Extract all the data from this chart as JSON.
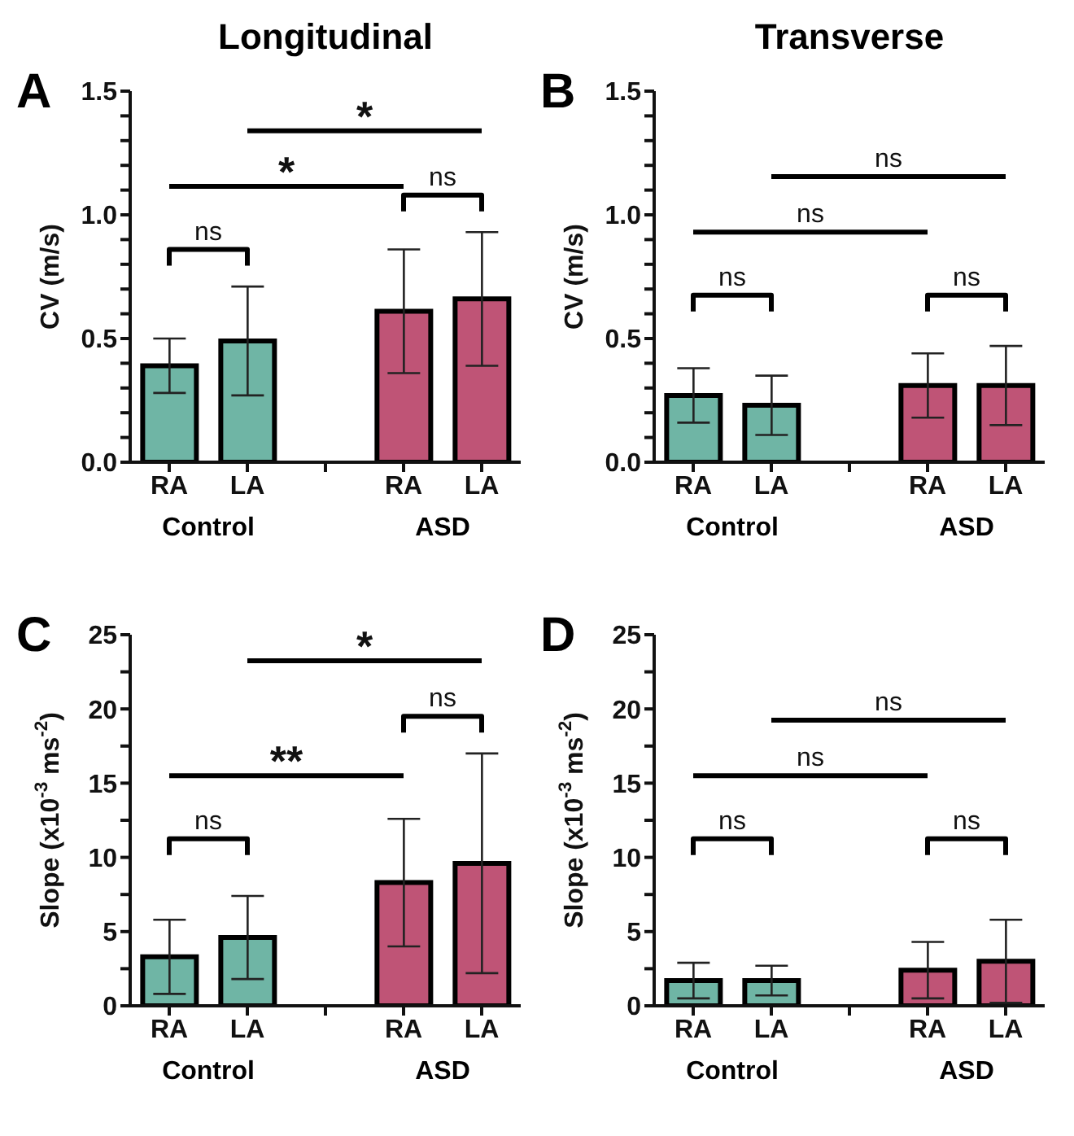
{
  "chart_data": [
    {
      "type": "bar",
      "title": "Longitudinal",
      "ylabel": "CV (m/s)",
      "categories": [
        "RA",
        "LA",
        null,
        "RA",
        "LA"
      ],
      "values": [
        0.39,
        0.49,
        null,
        0.61,
        0.66
      ],
      "errors": [
        0.11,
        0.22,
        null,
        0.25,
        0.27
      ],
      "colors": [
        "#6fb5a5",
        "#6fb5a5",
        null,
        "#bf5476",
        "#bf5476"
      ],
      "ylim": [
        0,
        1.5
      ],
      "yticks": [
        {
          "value": 0,
          "label": "0.0"
        },
        {
          "value": 0.1,
          "label": null
        },
        {
          "value": 0.2,
          "label": null
        },
        {
          "value": 0.3,
          "label": null
        },
        {
          "value": 0.4,
          "label": null
        },
        {
          "value": 0.5,
          "label": "0.5"
        },
        {
          "value": 0.6,
          "label": null
        },
        {
          "value": 0.7,
          "label": null
        },
        {
          "value": 0.8,
          "label": null
        },
        {
          "value": 0.9,
          "label": null
        },
        {
          "value": 1,
          "label": "1.0"
        },
        {
          "value": 1.1,
          "label": null
        },
        {
          "value": 1.2,
          "label": null
        },
        {
          "value": 1.3,
          "label": null
        },
        {
          "value": 1.4,
          "label": null
        },
        {
          "value": 1.5,
          "label": "1.5"
        }
      ],
      "annotations": [
        "A",
        "Control",
        "ASD",
        "ns",
        "ns",
        "*",
        "*"
      ]
    },
    {
      "type": "bar",
      "title": "Transverse",
      "ylabel": "CV (m/s)",
      "categories": [
        "RA",
        "LA",
        null,
        "RA",
        "LA"
      ],
      "values": [
        0.27,
        0.23,
        null,
        0.31,
        0.31
      ],
      "errors": [
        0.11,
        0.12,
        null,
        0.13,
        0.16
      ],
      "colors": [
        "#6fb5a5",
        "#6fb5a5",
        null,
        "#bf5476",
        "#bf5476"
      ],
      "ylim": [
        0,
        1.5
      ],
      "yticks": [
        {
          "value": 0,
          "label": "0.0"
        },
        {
          "value": 0.1,
          "label": null
        },
        {
          "value": 0.2,
          "label": null
        },
        {
          "value": 0.3,
          "label": null
        },
        {
          "value": 0.4,
          "label": null
        },
        {
          "value": 0.5,
          "label": "0.5"
        },
        {
          "value": 0.6,
          "label": null
        },
        {
          "value": 0.7,
          "label": null
        },
        {
          "value": 0.8,
          "label": null
        },
        {
          "value": 0.9,
          "label": null
        },
        {
          "value": 1,
          "label": "1.0"
        },
        {
          "value": 1.1,
          "label": null
        },
        {
          "value": 1.2,
          "label": null
        },
        {
          "value": 1.3,
          "label": null
        },
        {
          "value": 1.4,
          "label": null
        },
        {
          "value": 1.5,
          "label": "1.5"
        }
      ],
      "annotations": [
        "B",
        "Control",
        "ASD",
        "ns",
        "ns",
        "ns",
        "ns"
      ]
    },
    {
      "type": "bar",
      "ylabel": "Slope (x10$^{-3}$ ms$^{-2}$)",
      "categories": [
        "RA",
        "LA",
        null,
        "RA",
        "LA"
      ],
      "values": [
        3.3,
        4.6,
        null,
        8.3,
        9.6
      ],
      "errors": [
        2.5,
        2.8,
        null,
        4.3,
        7.4
      ],
      "colors": [
        "#6fb5a5",
        "#6fb5a5",
        null,
        "#bf5476",
        "#bf5476"
      ],
      "ylim": [
        0,
        25
      ],
      "yticks": [
        0,
        {
          "value": 2.5,
          "label": null
        },
        5,
        {
          "value": 7.5,
          "label": null
        },
        10,
        {
          "value": 12.5,
          "label": null
        },
        15,
        {
          "value": 17.5,
          "label": null
        },
        20,
        {
          "value": 22.5,
          "label": null
        },
        25
      ],
      "annotations": [
        "C",
        "Control",
        "ASD",
        "ns",
        "ns",
        "**",
        "*"
      ]
    },
    {
      "type": "bar",
      "ylabel": "Slope (x10$^{-3}$ ms$^{-2}$)",
      "categories": [
        "RA",
        "LA",
        null,
        "RA",
        "LA"
      ],
      "values": [
        1.7,
        1.7,
        null,
        2.4,
        3.0
      ],
      "errors": [
        1.2,
        1.0,
        null,
        1.9,
        2.8
      ],
      "colors": [
        "#6fb5a5",
        "#6fb5a5",
        null,
        "#bf5476",
        "#bf5476"
      ],
      "ylim": [
        0,
        25
      ],
      "yticks": [
        0,
        {
          "value": 2.5,
          "label": null
        },
        5,
        {
          "value": 7.5,
          "label": null
        },
        10,
        {
          "value": 12.5,
          "label": null
        },
        15,
        {
          "value": 17.5,
          "label": null
        },
        20,
        {
          "value": 22.5,
          "label": null
        },
        25
      ],
      "annotations": [
        "D",
        "Control",
        "ASD",
        "ns",
        "ns",
        "ns",
        "ns"
      ]
    }
  ]
}
